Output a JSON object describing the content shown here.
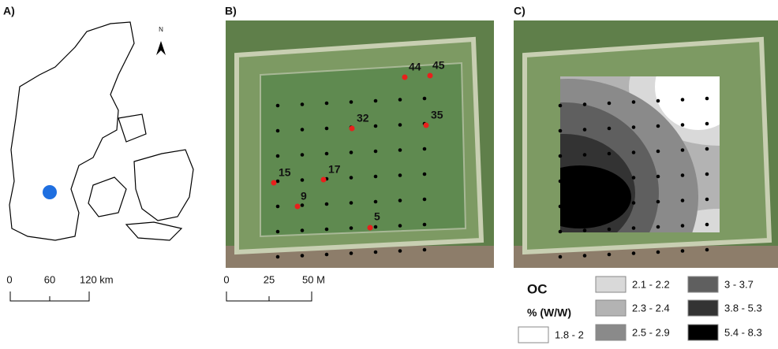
{
  "panel_a": {
    "label": "A)",
    "north": "N",
    "scale": [
      "0",
      "60",
      "120 km"
    ]
  },
  "panel_b": {
    "label": "B)",
    "scale": [
      "0",
      "25",
      "50 M"
    ],
    "samples": [
      "44",
      "45",
      "35",
      "32",
      "17",
      "15",
      "9",
      "5"
    ]
  },
  "panel_c": {
    "label": "C)"
  },
  "legend": {
    "title": "OC",
    "subtitle": "% (W/W)",
    "classes": [
      {
        "label": "1.8 - 2",
        "color": "#ffffff"
      },
      {
        "label": "2.1 - 2.2",
        "color": "#d9d9d9"
      },
      {
        "label": "2.3 - 2.4",
        "color": "#b3b3b3"
      },
      {
        "label": "2.5 - 2.9",
        "color": "#8a8a8a"
      },
      {
        "label": "3 - 3.7",
        "color": "#5f5f5f"
      },
      {
        "label": "3.8 - 5.3",
        "color": "#333333"
      },
      {
        "label": "5.4 - 8.3",
        "color": "#000000"
      }
    ]
  }
}
